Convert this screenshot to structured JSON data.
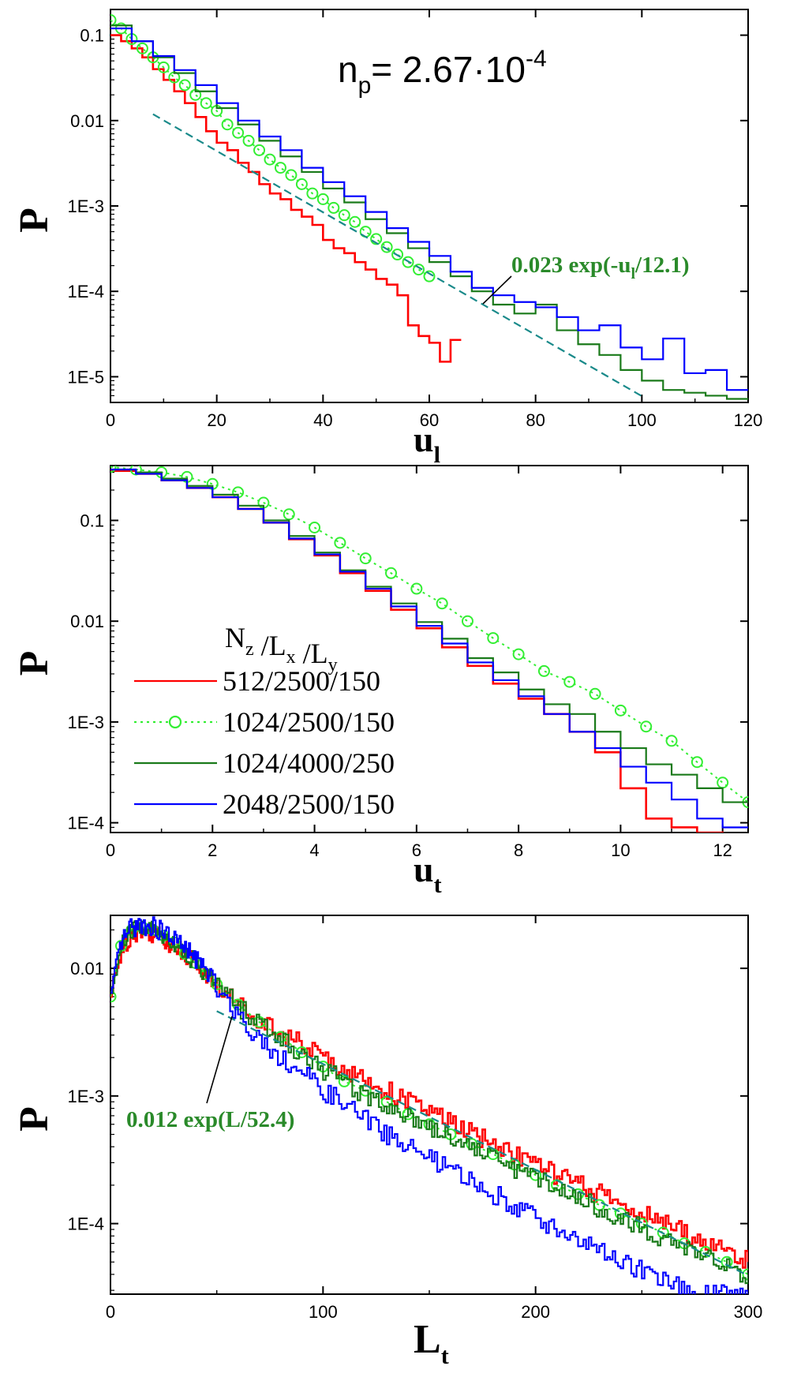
{
  "colors": {
    "red": "#ff0000",
    "lightgreen": "#33ee33",
    "darkgreen": "#1a7a1a",
    "blue": "#0000ff",
    "fit": "#1a8a8a",
    "annot": "#2a8a2a"
  },
  "legend": {
    "title": "N_z /L_x /L_y",
    "entries": [
      "512/2500/150",
      "1024/2500/150",
      "1024/4000/250",
      "2048/2500/150"
    ]
  },
  "chart_data": [
    {
      "type": "line",
      "title": "n_p= 2.67·10^-4",
      "xlabel": "u_l",
      "ylabel": "P",
      "xlim": [
        0,
        120
      ],
      "ylim": [
        5e-06,
        0.2
      ],
      "yscale": "log",
      "xticks": [
        0,
        20,
        40,
        60,
        80,
        100,
        120
      ],
      "xtick_labels": [
        "0",
        "20",
        "40",
        "60",
        "80",
        "100",
        "120"
      ],
      "yticks": [
        0.1,
        0.01,
        0.001,
        0.0001,
        1e-05
      ],
      "ytick_labels": [
        "0.1",
        "0.01",
        "1E-3",
        "1E-4",
        "1E-5"
      ],
      "fit": {
        "label": "0.023 exp(-u_l/12.1)",
        "amplitude": 0.023,
        "scale": -12.1,
        "x_range": [
          8,
          100
        ]
      },
      "series": [
        {
          "name": "512/2500/150",
          "style": "step",
          "x": [
            0,
            2,
            4,
            6,
            8,
            10,
            12,
            14,
            16,
            18,
            20,
            22,
            24,
            26,
            28,
            30,
            32,
            34,
            36,
            38,
            40,
            42,
            44,
            46,
            48,
            50,
            52,
            54,
            56,
            58,
            60,
            62,
            64
          ],
          "y": [
            0.1,
            0.085,
            0.07,
            0.055,
            0.04,
            0.03,
            0.022,
            0.016,
            0.011,
            0.0075,
            0.0055,
            0.0045,
            0.0032,
            0.0025,
            0.0018,
            0.0014,
            0.0012,
            0.0009,
            0.00075,
            0.0006,
            0.0004,
            0.00032,
            0.00028,
            0.00022,
            0.00018,
            0.00014,
            0.00012,
            9e-05,
            4e-05,
            3e-05,
            2.5e-05,
            1.5e-05,
            2.7e-05
          ]
        },
        {
          "name": "1024/2500/150",
          "style": "dotted-circles",
          "x": [
            0,
            2,
            4,
            6,
            8,
            10,
            12,
            14,
            16,
            18,
            20,
            22,
            24,
            26,
            28,
            30,
            32,
            34,
            36,
            38,
            40,
            42,
            44,
            46,
            48,
            50,
            52,
            54,
            56,
            58,
            60
          ],
          "y": [
            0.15,
            0.12,
            0.09,
            0.07,
            0.055,
            0.042,
            0.032,
            0.026,
            0.02,
            0.016,
            0.013,
            0.009,
            0.0072,
            0.0058,
            0.0045,
            0.0035,
            0.0028,
            0.0023,
            0.0018,
            0.0014,
            0.0012,
            0.00095,
            0.00078,
            0.00065,
            0.0005,
            0.00041,
            0.00033,
            0.00027,
            0.00022,
            0.00018,
            0.00015
          ]
        },
        {
          "name": "1024/4000/250",
          "style": "step",
          "x": [
            0,
            4,
            8,
            12,
            16,
            20,
            24,
            28,
            32,
            36,
            40,
            44,
            48,
            52,
            56,
            60,
            64,
            68,
            72,
            76,
            80,
            84,
            88,
            92,
            96,
            100,
            104,
            108,
            112,
            116
          ],
          "y": [
            0.13,
            0.085,
            0.055,
            0.036,
            0.022,
            0.014,
            0.009,
            0.0058,
            0.0038,
            0.0025,
            0.0016,
            0.0011,
            0.0007,
            0.00048,
            0.00032,
            0.00022,
            0.00015,
            0.0001,
            7e-05,
            5.5e-05,
            7e-05,
            3.5e-05,
            2.4e-05,
            1.8e-05,
            1.2e-05,
            9e-06,
            7e-06,
            6.5e-06,
            6e-06,
            5.5e-06
          ]
        },
        {
          "name": "2048/2500/150",
          "style": "step",
          "x": [
            0,
            4,
            8,
            12,
            16,
            20,
            24,
            28,
            32,
            36,
            40,
            44,
            48,
            52,
            56,
            60,
            64,
            68,
            72,
            76,
            80,
            84,
            88,
            92,
            96,
            100,
            104,
            108,
            112,
            116
          ],
          "y": [
            0.12,
            0.085,
            0.057,
            0.039,
            0.026,
            0.016,
            0.01,
            0.0065,
            0.0045,
            0.0028,
            0.0019,
            0.0013,
            0.00085,
            0.00055,
            0.00038,
            0.00026,
            0.00017,
            0.00011,
            9e-05,
            7.5e-05,
            6.5e-05,
            5e-05,
            3.5e-05,
            4e-05,
            2.2e-05,
            1.6e-05,
            2.8e-05,
            1.1e-05,
            1.2e-05,
            7e-06
          ]
        }
      ]
    },
    {
      "type": "line",
      "xlabel": "u_t",
      "ylabel": "P",
      "xlim": [
        0,
        12.5
      ],
      "ylim": [
        8e-05,
        0.35
      ],
      "yscale": "log",
      "xticks": [
        0,
        2,
        4,
        6,
        8,
        10,
        12
      ],
      "xtick_labels": [
        "0",
        "2",
        "4",
        "6",
        "8",
        "10",
        "12"
      ],
      "yticks": [
        0.1,
        0.01,
        0.001,
        0.0001
      ],
      "ytick_labels": [
        "0.1",
        "0.01",
        "1E-3",
        "1E-4"
      ],
      "series": [
        {
          "name": "512/2500/150",
          "style": "step",
          "x": [
            0,
            0.5,
            1,
            1.5,
            2,
            2.5,
            3,
            3.5,
            4,
            4.5,
            5,
            5.5,
            6,
            6.5,
            7,
            7.5,
            8,
            8.5,
            9,
            9.5,
            10,
            10.5,
            11,
            11.5,
            12
          ],
          "y": [
            0.31,
            0.29,
            0.25,
            0.21,
            0.17,
            0.13,
            0.095,
            0.065,
            0.045,
            0.03,
            0.02,
            0.013,
            0.0085,
            0.0055,
            0.0036,
            0.0024,
            0.0017,
            0.0012,
            0.0008,
            0.0005,
            0.00022,
            0.00011,
            9e-05,
            8e-05,
            7e-05
          ]
        },
        {
          "name": "1024/2500/150",
          "style": "dotted-circles",
          "x": [
            0,
            0.5,
            1,
            1.5,
            2,
            2.5,
            3,
            3.5,
            4,
            4.5,
            5,
            5.5,
            6,
            6.5,
            7,
            7.5,
            8,
            8.5,
            9,
            9.5,
            10,
            10.5,
            11,
            11.5,
            12,
            12.5
          ],
          "y": [
            0.34,
            0.32,
            0.3,
            0.27,
            0.23,
            0.19,
            0.15,
            0.115,
            0.085,
            0.06,
            0.042,
            0.03,
            0.021,
            0.015,
            0.01,
            0.0068,
            0.0047,
            0.0032,
            0.0025,
            0.0019,
            0.0013,
            0.0009,
            0.00065,
            0.0004,
            0.00025,
            0.00016
          ]
        },
        {
          "name": "1024/4000/250",
          "style": "step",
          "x": [
            0,
            0.5,
            1,
            1.5,
            2,
            2.5,
            3,
            3.5,
            4,
            4.5,
            5,
            5.5,
            6,
            6.5,
            7,
            7.5,
            8,
            8.5,
            9,
            9.5,
            10,
            10.5,
            11,
            11.5,
            12
          ],
          "y": [
            0.32,
            0.3,
            0.26,
            0.22,
            0.18,
            0.14,
            0.1,
            0.07,
            0.048,
            0.032,
            0.022,
            0.015,
            0.0098,
            0.0067,
            0.0043,
            0.0031,
            0.0021,
            0.0015,
            0.0012,
            0.0008,
            0.00055,
            0.00038,
            0.0003,
            0.00022,
            0.00016
          ]
        },
        {
          "name": "2048/2500/150",
          "style": "step",
          "x": [
            0,
            0.5,
            1,
            1.5,
            2,
            2.5,
            3,
            3.5,
            4,
            4.5,
            5,
            5.5,
            6,
            6.5,
            7,
            7.5,
            8,
            8.5,
            9,
            9.5,
            10,
            10.5,
            11,
            11.5,
            12
          ],
          "y": [
            0.32,
            0.29,
            0.25,
            0.21,
            0.17,
            0.13,
            0.095,
            0.066,
            0.046,
            0.031,
            0.021,
            0.014,
            0.009,
            0.006,
            0.0039,
            0.0026,
            0.0018,
            0.0012,
            0.0008,
            0.00055,
            0.00036,
            0.00025,
            0.00017,
            0.00011,
            9e-05
          ]
        }
      ]
    },
    {
      "type": "line",
      "xlabel": "L_t",
      "ylabel": "P",
      "xlim": [
        0,
        300
      ],
      "ylim": [
        2.8e-05,
        0.026
      ],
      "yscale": "log",
      "xticks": [
        0,
        100,
        200,
        300
      ],
      "xtick_labels": [
        "0",
        "100",
        "200",
        "300"
      ],
      "yticks": [
        0.01,
        0.001,
        0.0001
      ],
      "ytick_labels": [
        "0.01",
        "1E-3",
        "1E-4"
      ],
      "fit": {
        "label": "0.012 exp(L/52.4)",
        "amplitude": 0.012,
        "scale": -52.4,
        "x_range": [
          50,
          300
        ]
      },
      "series": [
        {
          "name": "512/2500/150",
          "style": "noisy-step",
          "x": [
            0,
            5,
            10,
            15,
            20,
            25,
            30,
            35,
            40,
            45,
            50,
            60,
            70,
            80,
            90,
            100,
            110,
            120,
            130,
            140,
            150,
            160,
            170,
            180,
            190,
            200,
            210,
            220,
            230,
            240,
            250,
            260,
            270,
            280,
            290,
            300
          ],
          "y": [
            0.006,
            0.014,
            0.019,
            0.02,
            0.019,
            0.017,
            0.015,
            0.013,
            0.011,
            0.0088,
            0.0072,
            0.0052,
            0.004,
            0.0031,
            0.0025,
            0.002,
            0.0016,
            0.0013,
            0.0011,
            0.0009,
            0.00075,
            0.00062,
            0.0005,
            0.00042,
            0.00035,
            0.00029,
            0.00024,
            0.0002,
            0.00017,
            0.00014,
            0.00012,
            0.0001,
            8.5e-05,
            7e-05,
            6e-05,
            5e-05
          ]
        },
        {
          "name": "1024/2500/150",
          "style": "dotted-circles",
          "x": [
            0,
            5,
            10,
            15,
            20,
            25,
            30,
            35,
            40,
            45,
            50,
            60,
            70,
            80,
            90,
            100,
            110,
            120,
            130,
            140,
            150,
            160,
            170,
            180,
            190,
            200,
            210,
            220,
            230,
            240,
            250,
            260,
            270,
            280,
            290,
            300
          ],
          "y": [
            0.006,
            0.015,
            0.02,
            0.021,
            0.02,
            0.018,
            0.016,
            0.013,
            0.011,
            0.009,
            0.0075,
            0.0052,
            0.0038,
            0.0029,
            0.0022,
            0.0017,
            0.0013,
            0.0011,
            0.0009,
            0.00072,
            0.0006,
            0.0005,
            0.00042,
            0.00035,
            0.00029,
            0.00024,
            0.0002,
            0.00017,
            0.00014,
            0.00012,
            0.0001,
            8.5e-05,
            7e-05,
            6e-05,
            5e-05,
            4e-05
          ]
        },
        {
          "name": "1024/4000/250",
          "style": "noisy-step",
          "x": [
            0,
            5,
            10,
            15,
            20,
            25,
            30,
            35,
            40,
            45,
            50,
            60,
            70,
            80,
            90,
            100,
            110,
            120,
            130,
            140,
            150,
            160,
            170,
            180,
            190,
            200,
            210,
            220,
            230,
            240,
            250,
            260,
            270,
            280,
            290,
            300
          ],
          "y": [
            0.006,
            0.015,
            0.02,
            0.021,
            0.02,
            0.018,
            0.016,
            0.013,
            0.011,
            0.009,
            0.0074,
            0.005,
            0.0037,
            0.0028,
            0.0021,
            0.0016,
            0.0013,
            0.001,
            0.00085,
            0.0007,
            0.00058,
            0.00048,
            0.0004,
            0.00033,
            0.00027,
            0.00023,
            0.00019,
            0.00016,
            0.00013,
            0.00011,
            9e-05,
            7.5e-05,
            6.5e-05,
            5.5e-05,
            4.5e-05,
            4e-05
          ]
        },
        {
          "name": "2048/2500/150",
          "style": "noisy-step",
          "x": [
            0,
            5,
            10,
            15,
            20,
            25,
            30,
            35,
            40,
            45,
            50,
            60,
            70,
            80,
            90,
            100,
            110,
            120,
            130,
            140,
            150,
            160,
            170,
            180,
            190,
            200,
            210,
            220,
            230,
            240,
            250,
            260,
            270,
            280,
            290,
            300
          ],
          "y": [
            0.006,
            0.016,
            0.021,
            0.022,
            0.021,
            0.019,
            0.017,
            0.014,
            0.012,
            0.0095,
            0.0072,
            0.0043,
            0.0028,
            0.002,
            0.0015,
            0.0011,
            0.00085,
            0.00065,
            0.0005,
            0.0004,
            0.00032,
            0.00026,
            0.00021,
            0.00017,
            0.00014,
            0.00011,
            9e-05,
            7.5e-05,
            6e-05,
            5e-05,
            4.2e-05,
            3.6e-05,
            3e-05,
            2.8e-05,
            2.8e-05,
            2.8e-05
          ]
        }
      ]
    }
  ]
}
